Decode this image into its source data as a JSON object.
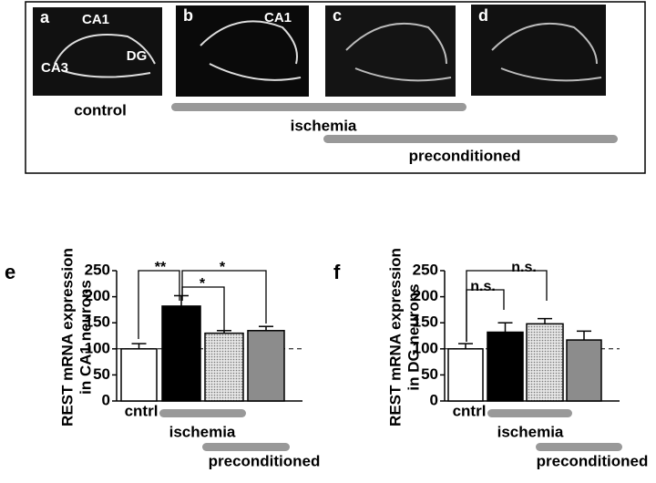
{
  "panel_top": {
    "panel_labels": [
      "a",
      "b",
      "c",
      "d"
    ],
    "region_labels": [
      "CA1",
      "CA3",
      "DG",
      "CA1"
    ],
    "group_labels": [
      "control",
      "ischemia",
      "preconditioned"
    ]
  },
  "chart_data": [
    {
      "type": "bar",
      "panel_label": "e",
      "y_label": [
        "REST mRNA expression",
        "in CA1 neurons"
      ],
      "categories": [
        "cntrl",
        null,
        null,
        null
      ],
      "values": [
        100,
        182,
        130,
        135
      ],
      "errors": [
        10,
        20,
        5,
        8
      ],
      "colors": [
        "#ffffff",
        "#000000",
        "#c8c8c8",
        "#8c8c8c"
      ],
      "fills": [
        "solid",
        "solid",
        "dotted",
        "solid"
      ],
      "ylim": [
        0,
        250
      ],
      "yticks": [
        0,
        50,
        100,
        150,
        200,
        250
      ],
      "reference_line": 100,
      "group_labels": [
        "ischemia",
        "preconditioned"
      ],
      "annotations": [
        "**",
        "*",
        "*"
      ]
    },
    {
      "type": "bar",
      "panel_label": "f",
      "y_label": [
        "REST mRNA expression",
        "in DG neurons"
      ],
      "categories": [
        "cntrl",
        null,
        null,
        null
      ],
      "values": [
        100,
        132,
        148,
        117
      ],
      "errors": [
        10,
        18,
        10,
        17
      ],
      "colors": [
        "#ffffff",
        "#000000",
        "#c8c8c8",
        "#8c8c8c"
      ],
      "fills": [
        "solid",
        "solid",
        "dotted",
        "solid"
      ],
      "ylim": [
        0,
        250
      ],
      "yticks": [
        0,
        50,
        100,
        150,
        200,
        250
      ],
      "reference_line": 100,
      "group_labels": [
        "ischemia",
        "preconditioned"
      ],
      "annotations": [
        "n.s.",
        "n.s."
      ]
    }
  ]
}
